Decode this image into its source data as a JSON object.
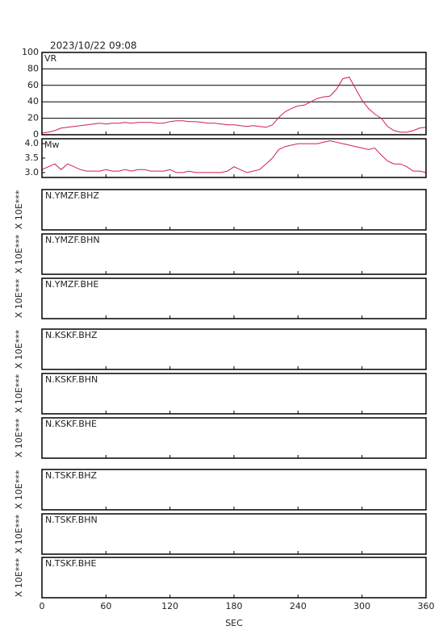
{
  "chart_data": [
    {
      "type": "line",
      "title": "2023/10/22 09:08",
      "x": [
        0,
        6,
        12,
        18,
        24,
        30,
        36,
        42,
        48,
        54,
        60,
        66,
        72,
        78,
        84,
        90,
        96,
        102,
        108,
        114,
        120,
        126,
        132,
        138,
        144,
        150,
        156,
        162,
        168,
        174,
        180,
        186,
        192,
        198,
        204,
        210,
        216,
        222,
        228,
        234,
        240,
        246,
        252,
        258,
        264,
        270,
        276,
        282,
        288,
        294,
        300,
        306,
        312,
        318,
        324,
        330,
        336,
        342,
        348,
        354,
        360
      ],
      "series": [
        {
          "name": "VR",
          "color": "#d0204a",
          "values": [
            2,
            3,
            5,
            8,
            9,
            10,
            11,
            12,
            13,
            14,
            13,
            14,
            14,
            15,
            14,
            15,
            15,
            15,
            14,
            14,
            16,
            17,
            17,
            16,
            16,
            15,
            14,
            14,
            13,
            12,
            12,
            11,
            10,
            11,
            10,
            9,
            12,
            21,
            28,
            32,
            35,
            36,
            40,
            44,
            46,
            47,
            55,
            68,
            70,
            56,
            42,
            32,
            25,
            20,
            10,
            5,
            3,
            3,
            5,
            8,
            9
          ]
        }
      ],
      "xlim": [
        0,
        360
      ],
      "xticks": [
        0,
        60,
        120,
        180,
        240,
        300,
        360
      ],
      "ylim": [
        0,
        100
      ],
      "yticks": [
        0,
        20,
        40,
        60,
        80,
        100
      ],
      "grid": true
    },
    {
      "type": "line",
      "x": [
        0,
        6,
        12,
        18,
        24,
        30,
        36,
        42,
        48,
        54,
        60,
        66,
        72,
        78,
        84,
        90,
        96,
        102,
        108,
        114,
        120,
        126,
        132,
        138,
        144,
        150,
        156,
        162,
        168,
        174,
        180,
        186,
        192,
        198,
        204,
        210,
        216,
        222,
        228,
        234,
        240,
        246,
        252,
        258,
        264,
        270,
        276,
        282,
        288,
        294,
        300,
        306,
        312,
        318,
        324,
        330,
        336,
        342,
        348,
        354,
        360
      ],
      "series": [
        {
          "name": "Mw",
          "color": "#d0204a",
          "values": [
            3.1,
            3.2,
            3.3,
            3.1,
            3.3,
            3.2,
            3.1,
            3.05,
            3.05,
            3.05,
            3.1,
            3.05,
            3.05,
            3.1,
            3.05,
            3.1,
            3.1,
            3.05,
            3.05,
            3.05,
            3.1,
            3.0,
            3.0,
            3.05,
            3.0,
            3.0,
            3.0,
            3.0,
            3.0,
            3.05,
            3.2,
            3.1,
            3.0,
            3.05,
            3.1,
            3.3,
            3.5,
            3.8,
            3.9,
            3.95,
            4.0,
            4.0,
            4.0,
            4.0,
            4.05,
            4.1,
            4.05,
            4.0,
            3.95,
            3.9,
            3.85,
            3.8,
            3.85,
            3.6,
            3.4,
            3.3,
            3.3,
            3.2,
            3.05,
            3.05,
            3.0
          ]
        }
      ],
      "xlim": [
        0,
        360
      ],
      "xticks": [
        0,
        60,
        120,
        180,
        240,
        300,
        360
      ],
      "ylim": [
        2.83,
        4.17
      ],
      "yticks": [
        {
          "value": 3,
          "label": "3.0"
        },
        {
          "value": 3.5,
          "label": "3.5"
        },
        {
          "value": 4,
          "label": "4.0"
        }
      ],
      "grid": false
    },
    {
      "type": "waveform",
      "panel_label": "N.YMZF.BHZ",
      "ylabel": "X 10E***",
      "xlim": [
        0,
        360
      ],
      "xticks": [
        0,
        60,
        120,
        180,
        240,
        300,
        360
      ]
    },
    {
      "type": "waveform",
      "panel_label": "N.YMZF.BHN",
      "ylabel": "X 10E***",
      "xlim": [
        0,
        360
      ],
      "xticks": [
        0,
        60,
        120,
        180,
        240,
        300,
        360
      ]
    },
    {
      "type": "waveform",
      "panel_label": "N.YMZF.BHE",
      "ylabel": "X 10E***",
      "xlim": [
        0,
        360
      ],
      "xticks": [
        0,
        60,
        120,
        180,
        240,
        300,
        360
      ]
    },
    {
      "type": "waveform",
      "panel_label": "N.KSKF.BHZ",
      "ylabel": "X 10E***",
      "xlim": [
        0,
        360
      ],
      "xticks": [
        0,
        60,
        120,
        180,
        240,
        300,
        360
      ]
    },
    {
      "type": "waveform",
      "panel_label": "N.KSKF.BHN",
      "ylabel": "X 10E***",
      "xlim": [
        0,
        360
      ],
      "xticks": [
        0,
        60,
        120,
        180,
        240,
        300,
        360
      ]
    },
    {
      "type": "waveform",
      "panel_label": "N.KSKF.BHE",
      "ylabel": "X 10E***",
      "xlim": [
        0,
        360
      ],
      "xticks": [
        0,
        60,
        120,
        180,
        240,
        300,
        360
      ]
    },
    {
      "type": "waveform",
      "panel_label": "N.TSKF.BHZ",
      "ylabel": "X 10E***",
      "xlim": [
        0,
        360
      ],
      "xticks": [
        0,
        60,
        120,
        180,
        240,
        300,
        360
      ]
    },
    {
      "type": "waveform",
      "panel_label": "N.TSKF.BHN",
      "ylabel": "X 10E***",
      "xlim": [
        0,
        360
      ],
      "xticks": [
        0,
        60,
        120,
        180,
        240,
        300,
        360
      ]
    },
    {
      "type": "waveform",
      "panel_label": "N.TSKF.BHE",
      "ylabel": "X 10E***",
      "xlabel": "SEC",
      "xlim": [
        0,
        360
      ],
      "xticks": [
        0,
        60,
        120,
        180,
        240,
        300,
        360
      ]
    }
  ]
}
